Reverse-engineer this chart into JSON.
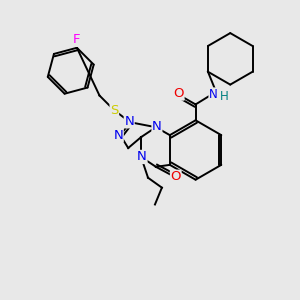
{
  "bg_color": "#e8e8e8",
  "fig_size": [
    3.0,
    3.0
  ],
  "dpi": 100,
  "atom_colors": {
    "C": "#000000",
    "N": "#0000ee",
    "O": "#ee0000",
    "S": "#cccc00",
    "F": "#ff00ff",
    "H": "#008080"
  },
  "bond_color": "#000000",
  "bond_width": 1.4,
  "font_size": 8.5
}
